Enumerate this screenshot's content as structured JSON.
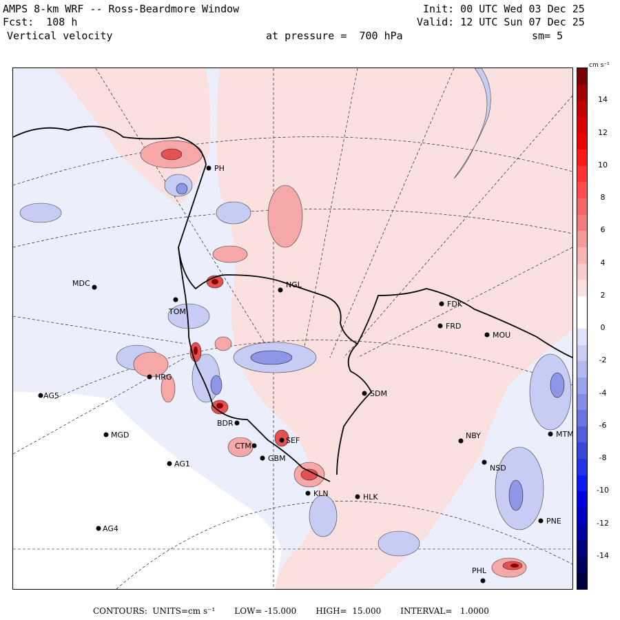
{
  "header": {
    "title": "AMPS 8-km WRF -- Ross-Beardmore Window",
    "forecast": "Fcst:  108 h",
    "field": "Vertical velocity",
    "init": "Init: 00 UTC Wed 03 Dec 25",
    "valid": "Valid: 12 UTC Sun 07 Dec 25",
    "pressure": "at pressure =  700 hPa",
    "smoothing": "sm= 5"
  },
  "colorbar": {
    "units": "cm s⁻¹",
    "ticks": [
      "14",
      "12",
      "10",
      "8",
      "6",
      "4",
      "2",
      "0",
      "-2",
      "-4",
      "-6",
      "-8",
      "-10",
      "-12",
      "-14"
    ],
    "min": -16,
    "max": 16,
    "colors_top_to_bottom": [
      "#7a0000",
      "#a00000",
      "#c00000",
      "#d80000",
      "#ee0000",
      "#ff1a1a",
      "#ff3333",
      "#ff4d4d",
      "#f56767",
      "#f27d7d",
      "#f59a9a",
      "#f8b3b3",
      "#fbcccc",
      "#fde0e0",
      "#ffffff",
      "#ffffff",
      "#dfe2fb",
      "#c9cdf6",
      "#b2b8f1",
      "#9aa2ec",
      "#848ce6",
      "#6b74e1",
      "#525ddb",
      "#3947d6",
      "#2233e5",
      "#0a1af0",
      "#0000e0",
      "#0000c0",
      "#0000a0",
      "#000080",
      "#00005e",
      "#000040"
    ]
  },
  "stations": [
    {
      "code": "PH"
    },
    {
      "code": "MDC"
    },
    {
      "code": "NGL"
    },
    {
      "code": "TOM"
    },
    {
      "code": "FDK"
    },
    {
      "code": "FRD"
    },
    {
      "code": "MOU"
    },
    {
      "code": "AG5"
    },
    {
      "code": "SDM"
    },
    {
      "code": "MGD"
    },
    {
      "code": "NBY"
    },
    {
      "code": "MTM"
    },
    {
      "code": "AG1"
    },
    {
      "code": "GBM"
    },
    {
      "code": "NSD"
    },
    {
      "code": "KLN"
    },
    {
      "code": "HLK"
    },
    {
      "code": "AG4"
    },
    {
      "code": "PNE"
    },
    {
      "code": "PHL"
    },
    {
      "code": "BDR"
    },
    {
      "code": "CTM"
    },
    {
      "code": "SEF"
    },
    {
      "code": "HRG"
    }
  ],
  "footer": {
    "contours": "CONTOURS:  UNITS=cm s⁻¹",
    "low": "LOW= -15.000",
    "high": "HIGH=  15.000",
    "interval": "INTERVAL=   1.0000"
  },
  "colors": {
    "land_background": "#fbe3e3",
    "ice_shelf_blue": "#e3e6fb",
    "white_region": "#ffffff",
    "positive_dark": "#b30000",
    "negative_dark": "#1f2bd6"
  }
}
